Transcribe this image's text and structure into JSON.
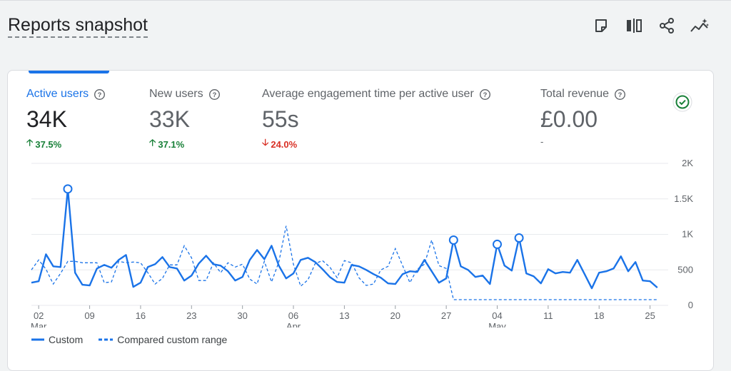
{
  "header": {
    "title": "Reports snapshot"
  },
  "toolbar": {
    "buttons": [
      {
        "name": "annotation-icon"
      },
      {
        "name": "compare-icon"
      },
      {
        "name": "share-icon"
      },
      {
        "name": "insights-icon"
      }
    ]
  },
  "metrics": [
    {
      "label": "Active users",
      "value": "34K",
      "change": "37.5%",
      "direction": "up"
    },
    {
      "label": "New users",
      "value": "33K",
      "change": "37.1%",
      "direction": "up"
    },
    {
      "label": "Average engagement time per active user",
      "value": "55s",
      "change": "24.0%",
      "direction": "down"
    },
    {
      "label": "Total revenue",
      "value": "£0.00",
      "change": "-",
      "direction": "none"
    }
  ],
  "colors": {
    "accent": "#1a73e8",
    "up": "#188038",
    "down": "#d93025",
    "check": "#188038"
  },
  "legend": {
    "custom": "Custom",
    "compared": "Compared custom range"
  },
  "chart_data": {
    "type": "line",
    "ylim": [
      0,
      2000
    ],
    "y_ticks": [
      {
        "v": 0,
        "label": "0"
      },
      {
        "v": 500,
        "label": "500"
      },
      {
        "v": 1000,
        "label": "1K"
      },
      {
        "v": 1500,
        "label": "1.5K"
      },
      {
        "v": 2000,
        "label": "2K"
      }
    ],
    "x_ticks": [
      {
        "day": 1,
        "label": "02",
        "month": "Mar"
      },
      {
        "day": 8,
        "label": "09"
      },
      {
        "day": 15,
        "label": "16"
      },
      {
        "day": 22,
        "label": "23"
      },
      {
        "day": 29,
        "label": "30"
      },
      {
        "day": 36,
        "label": "06",
        "month": "Apr"
      },
      {
        "day": 43,
        "label": "13"
      },
      {
        "day": 50,
        "label": "20"
      },
      {
        "day": 57,
        "label": "27"
      },
      {
        "day": 64,
        "label": "04",
        "month": "May"
      },
      {
        "day": 71,
        "label": "11"
      },
      {
        "day": 78,
        "label": "18"
      },
      {
        "day": 85,
        "label": "25"
      }
    ],
    "x_range": [
      0,
      87
    ],
    "series": [
      {
        "name": "Custom",
        "style": "solid",
        "values": [
          320,
          340,
          720,
          550,
          540,
          1640,
          460,
          290,
          280,
          520,
          570,
          530,
          640,
          710,
          260,
          320,
          540,
          580,
          680,
          540,
          520,
          350,
          420,
          590,
          700,
          580,
          560,
          480,
          350,
          400,
          640,
          780,
          650,
          840,
          560,
          380,
          450,
          640,
          670,
          610,
          510,
          400,
          330,
          320,
          570,
          550,
          500,
          440,
          390,
          310,
          300,
          440,
          480,
          470,
          640,
          480,
          320,
          380,
          920,
          550,
          500,
          400,
          420,
          300,
          860,
          560,
          490,
          950,
          450,
          410,
          310,
          510,
          450,
          470,
          460,
          640,
          440,
          240,
          460,
          480,
          520,
          690,
          480,
          610,
          350,
          340,
          250
        ],
        "markers": [
          5,
          58,
          64,
          67
        ]
      },
      {
        "name": "Compared custom range",
        "style": "dashed",
        "values": [
          500,
          640,
          510,
          300,
          450,
          620,
          620,
          600,
          600,
          600,
          320,
          330,
          620,
          600,
          610,
          600,
          460,
          300,
          380,
          570,
          570,
          840,
          670,
          350,
          350,
          600,
          460,
          600,
          540,
          580,
          370,
          300,
          620,
          330,
          610,
          1120,
          580,
          270,
          360,
          590,
          630,
          540,
          390,
          630,
          600,
          390,
          280,
          300,
          500,
          550,
          800,
          560,
          320,
          510,
          580,
          920,
          560,
          520,
          80,
          80,
          80,
          80,
          80,
          80,
          80,
          80,
          80,
          80,
          80,
          80,
          80,
          80,
          80,
          80,
          80,
          80,
          80,
          80,
          80,
          80,
          80,
          80,
          80,
          80,
          80,
          80,
          80
        ]
      }
    ]
  }
}
